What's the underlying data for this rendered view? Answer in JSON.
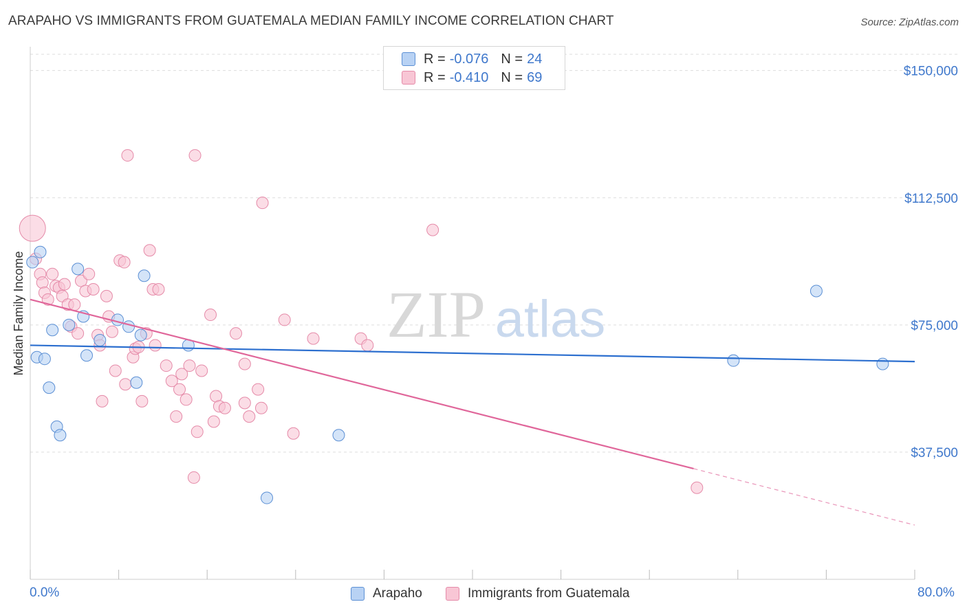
{
  "title": "ARAPAHO VS IMMIGRANTS FROM GUATEMALA MEDIAN FAMILY INCOME CORRELATION CHART",
  "source": "Source: ZipAtlas.com",
  "colors": {
    "series1_fill": "#b8d2f4",
    "series1_stroke": "#5b8fd4",
    "series1_line": "#2c6fcf",
    "series2_fill": "#f8c6d5",
    "series2_stroke": "#e58aa8",
    "series2_line": "#e0669a",
    "axis_label": "#3f78cc",
    "grid": "#dddddd",
    "watermark": "#c9d9ee"
  },
  "legend_top": [
    {
      "r_label": "R =",
      "r_value": "-0.076",
      "n_label": "N =",
      "n_value": "24"
    },
    {
      "r_label": "R =",
      "r_value": "-0.410",
      "n_label": "N =",
      "n_value": "69"
    }
  ],
  "chart_data": {
    "type": "scatter",
    "title": "ARAPAHO VS IMMIGRANTS FROM GUATEMALA MEDIAN FAMILY INCOME CORRELATION CHART",
    "xlabel": "",
    "ylabel": "Median Family Income",
    "xlim": [
      0,
      80
    ],
    "ylim": [
      0,
      155000
    ],
    "x_tick_labels": [
      "0.0%",
      "80.0%"
    ],
    "y_ticks": [
      {
        "value": 37500,
        "label": "$37,500"
      },
      {
        "value": 75000,
        "label": "$75,000"
      },
      {
        "value": 112500,
        "label": "$112,500"
      },
      {
        "value": 150000,
        "label": "$150,000"
      }
    ],
    "watermark": {
      "zip": "ZIP",
      "atlas": "atlas"
    },
    "series": [
      {
        "name": "Arapaho",
        "r": -0.076,
        "n": 24,
        "trend": {
          "x": [
            0,
            80
          ],
          "y": [
            69000,
            64200
          ],
          "dashed_from": null
        },
        "points": [
          [
            0.2,
            93500
          ],
          [
            0.6,
            65500
          ],
          [
            0.9,
            96500
          ],
          [
            1.3,
            65000
          ],
          [
            1.7,
            56500
          ],
          [
            2.0,
            73500
          ],
          [
            2.4,
            45000
          ],
          [
            2.7,
            42500
          ],
          [
            3.5,
            75000
          ],
          [
            4.3,
            91500
          ],
          [
            4.8,
            77500
          ],
          [
            5.1,
            66000
          ],
          [
            6.3,
            70500
          ],
          [
            7.9,
            76500
          ],
          [
            8.9,
            74500
          ],
          [
            9.6,
            58000
          ],
          [
            10.0,
            72000
          ],
          [
            10.3,
            89500
          ],
          [
            14.3,
            69000
          ],
          [
            21.4,
            24000
          ],
          [
            27.9,
            42500
          ],
          [
            63.6,
            64500
          ],
          [
            71.1,
            85000
          ],
          [
            77.1,
            63500
          ]
        ]
      },
      {
        "name": "Immigrants from Guatemala",
        "r": -0.41,
        "n": 69,
        "trend": {
          "x": [
            0,
            80
          ],
          "y": [
            82500,
            16000
          ],
          "dashed_from": 60
        },
        "points": [
          [
            0.2,
            103500
          ],
          [
            0.5,
            94500
          ],
          [
            0.9,
            90000
          ],
          [
            1.1,
            87500
          ],
          [
            1.3,
            84500
          ],
          [
            1.6,
            82500
          ],
          [
            2.0,
            90000
          ],
          [
            2.3,
            86500
          ],
          [
            2.6,
            86000
          ],
          [
            2.9,
            83500
          ],
          [
            3.1,
            87000
          ],
          [
            3.4,
            81000
          ],
          [
            3.7,
            74500
          ],
          [
            4.0,
            81000
          ],
          [
            4.3,
            72500
          ],
          [
            4.6,
            88000
          ],
          [
            5.0,
            85000
          ],
          [
            5.3,
            90000
          ],
          [
            5.7,
            85500
          ],
          [
            6.1,
            72000
          ],
          [
            6.3,
            69000
          ],
          [
            6.5,
            52500
          ],
          [
            6.9,
            83500
          ],
          [
            7.1,
            77500
          ],
          [
            7.4,
            73000
          ],
          [
            7.7,
            61500
          ],
          [
            8.1,
            94000
          ],
          [
            8.5,
            93500
          ],
          [
            8.6,
            57500
          ],
          [
            8.8,
            125000
          ],
          [
            9.3,
            65500
          ],
          [
            9.5,
            68000
          ],
          [
            9.8,
            68500
          ],
          [
            10.1,
            52500
          ],
          [
            10.5,
            72500
          ],
          [
            10.8,
            97000
          ],
          [
            11.1,
            85500
          ],
          [
            11.3,
            69000
          ],
          [
            11.6,
            85500
          ],
          [
            12.3,
            63000
          ],
          [
            12.8,
            58500
          ],
          [
            13.2,
            48000
          ],
          [
            13.5,
            56000
          ],
          [
            13.7,
            60500
          ],
          [
            14.1,
            53000
          ],
          [
            14.4,
            63000
          ],
          [
            14.8,
            30000
          ],
          [
            14.9,
            125000
          ],
          [
            15.1,
            43500
          ],
          [
            15.5,
            61500
          ],
          [
            16.3,
            78000
          ],
          [
            16.6,
            46500
          ],
          [
            16.8,
            54000
          ],
          [
            17.1,
            51000
          ],
          [
            17.6,
            50500
          ],
          [
            18.6,
            72500
          ],
          [
            19.4,
            63500
          ],
          [
            19.4,
            52000
          ],
          [
            19.8,
            48000
          ],
          [
            20.6,
            56000
          ],
          [
            20.9,
            50500
          ],
          [
            21.0,
            111000
          ],
          [
            23.0,
            76500
          ],
          [
            23.8,
            43000
          ],
          [
            25.6,
            71000
          ],
          [
            29.9,
            71000
          ],
          [
            30.5,
            69000
          ],
          [
            36.4,
            103000
          ],
          [
            60.3,
            27000
          ]
        ]
      }
    ]
  },
  "legend_bottom": [
    {
      "label": "Arapaho"
    },
    {
      "label": "Immigrants from Guatemala"
    }
  ]
}
